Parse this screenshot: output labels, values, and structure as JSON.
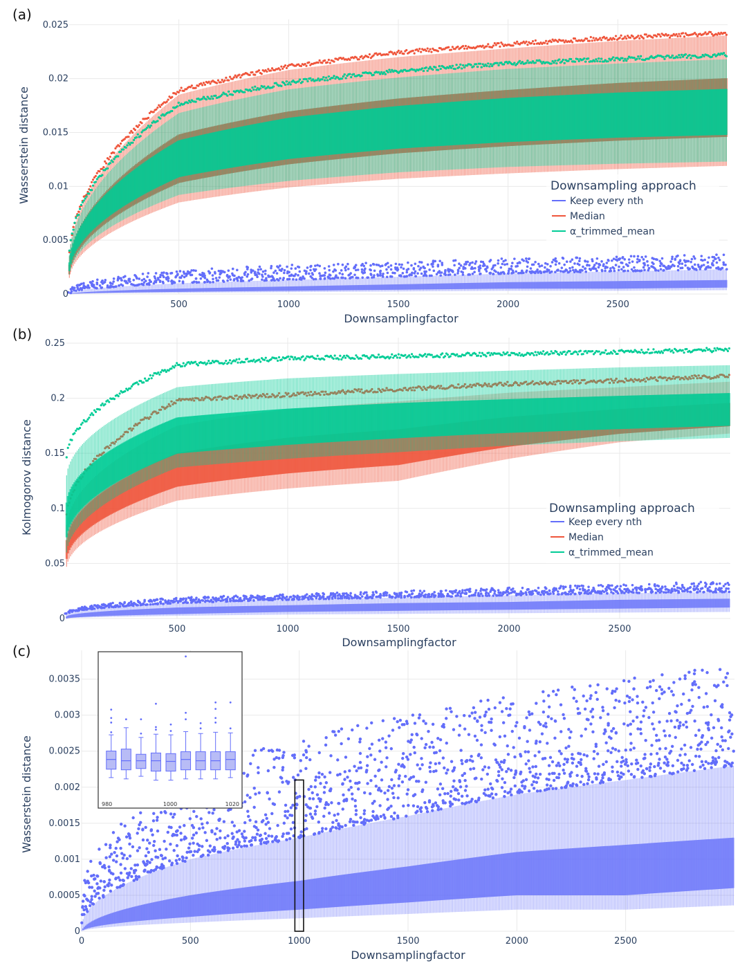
{
  "colors": {
    "keep_every_nth": "#636efa",
    "median": "#ef553b",
    "alpha_trimmed_mean": "#00cc96",
    "grid": "#e9e9e9"
  },
  "chart_data": [
    {
      "id": "a",
      "panel_label": "(a)",
      "type": "box",
      "xlabel": "Downsamplingfactor",
      "ylabel": "Wasserstein distance",
      "xlim": [
        0,
        3000
      ],
      "ylim": [
        0,
        0.0255
      ],
      "x_ticks": [
        500,
        1000,
        1500,
        2000,
        2500
      ],
      "x_tick_labels": [
        "500",
        "1000",
        "1500",
        "2000",
        "2500"
      ],
      "y_ticks": [
        0,
        0.005,
        0.01,
        0.015,
        0.02,
        0.025
      ],
      "y_tick_labels": [
        "0",
        "0.005",
        "0.01",
        "0.015",
        "0.02",
        "0.025"
      ],
      "legend": {
        "title": "Downsampling approach",
        "items": [
          "Keep every nth",
          "Median",
          "α_trimmed_mean"
        ],
        "position": "right"
      },
      "series": [
        {
          "name": "Keep every nth",
          "x": [
            1,
            500,
            1000,
            1500,
            2000,
            2500,
            3000
          ],
          "q1": [
            0.0,
            0.0002,
            0.0003,
            0.0004,
            0.0005,
            0.0005,
            0.0006
          ],
          "median": [
            0.0,
            0.0003,
            0.0005,
            0.0006,
            0.0007,
            0.0008,
            0.0009
          ],
          "q3": [
            0.0,
            0.0005,
            0.0007,
            0.0009,
            0.0011,
            0.0012,
            0.0013
          ],
          "upper": [
            0.0001,
            0.001,
            0.0013,
            0.0016,
            0.0019,
            0.0021,
            0.0023
          ],
          "outlier_max": [
            0.0005,
            0.0022,
            0.0027,
            0.003,
            0.0033,
            0.0035,
            0.0037
          ]
        },
        {
          "name": "Median",
          "x": [
            1,
            500,
            1000,
            1500,
            2000,
            2500,
            3000
          ],
          "lower": [
            0.0015,
            0.0085,
            0.0099,
            0.0107,
            0.0112,
            0.0116,
            0.0119
          ],
          "median": [
            0.0021,
            0.0118,
            0.0138,
            0.015,
            0.0158,
            0.0164,
            0.0168
          ],
          "upper": [
            0.0035,
            0.0185,
            0.0208,
            0.022,
            0.0228,
            0.0235,
            0.024
          ],
          "outlier_max": [
            0.004,
            0.0191,
            0.0213,
            0.0226,
            0.0234,
            0.024,
            0.0244
          ]
        },
        {
          "name": "α_trimmed_mean",
          "x": [
            1,
            500,
            1000,
            1500,
            2000,
            2500,
            3000
          ],
          "lower": [
            0.0018,
            0.0092,
            0.0105,
            0.0113,
            0.0118,
            0.0121,
            0.0123
          ],
          "median": [
            0.0024,
            0.0122,
            0.0142,
            0.0153,
            0.016,
            0.0165,
            0.0168
          ],
          "upper": [
            0.0036,
            0.0168,
            0.019,
            0.0201,
            0.0209,
            0.0214,
            0.0218
          ],
          "outlier_max": [
            0.0042,
            0.0178,
            0.0198,
            0.0209,
            0.0216,
            0.022,
            0.0224
          ]
        }
      ]
    },
    {
      "id": "b",
      "panel_label": "(b)",
      "type": "box",
      "xlabel": "Downsamplingfactor",
      "ylabel": "Kolmogorov distance",
      "xlim": [
        0,
        3000
      ],
      "ylim": [
        0,
        0.255
      ],
      "x_ticks": [
        500,
        1000,
        1500,
        2000,
        2500
      ],
      "x_tick_labels": [
        "500",
        "1000",
        "1500",
        "2000",
        "2500"
      ],
      "y_ticks": [
        0,
        0.05,
        0.1,
        0.15,
        0.2,
        0.25
      ],
      "y_tick_labels": [
        "0",
        "0.05",
        "0.1",
        "0.15",
        "0.2",
        "0.25"
      ],
      "legend": {
        "title": "Downsampling approach",
        "items": [
          "Keep every nth",
          "Median",
          "α_trimmed_mean"
        ],
        "position": "right"
      },
      "series": [
        {
          "name": "Keep every nth",
          "x": [
            1,
            500,
            1000,
            1500,
            2000,
            2500,
            3000
          ],
          "q1": [
            0.0,
            0.004,
            0.006,
            0.007,
            0.008,
            0.009,
            0.01
          ],
          "median": [
            0.001,
            0.007,
            0.009,
            0.011,
            0.012,
            0.013,
            0.014
          ],
          "q3": [
            0.002,
            0.01,
            0.012,
            0.014,
            0.015,
            0.017,
            0.018
          ],
          "upper": [
            0.004,
            0.014,
            0.017,
            0.019,
            0.021,
            0.023,
            0.024
          ],
          "outlier_max": [
            0.006,
            0.019,
            0.022,
            0.025,
            0.028,
            0.031,
            0.034
          ]
        },
        {
          "name": "Median",
          "x": [
            1,
            500,
            1000,
            1500,
            2000,
            2500,
            3000
          ],
          "lower": [
            0.047,
            0.107,
            0.118,
            0.125,
            0.145,
            0.16,
            0.168
          ],
          "median": [
            0.06,
            0.13,
            0.143,
            0.151,
            0.165,
            0.174,
            0.18
          ],
          "upper": [
            0.085,
            0.175,
            0.19,
            0.197,
            0.205,
            0.21,
            0.215
          ],
          "outlier_max": [
            0.095,
            0.2,
            0.205,
            0.21,
            0.215,
            0.218,
            0.222
          ]
        },
        {
          "name": "α_trimmed_mean",
          "x": [
            1,
            500,
            1000,
            1500,
            2000,
            2500,
            3000
          ],
          "lower": [
            0.06,
            0.137,
            0.145,
            0.151,
            0.157,
            0.161,
            0.164
          ],
          "median": [
            0.085,
            0.16,
            0.168,
            0.174,
            0.178,
            0.181,
            0.184
          ],
          "upper": [
            0.13,
            0.21,
            0.218,
            0.222,
            0.225,
            0.228,
            0.23
          ],
          "outlier_max": [
            0.15,
            0.232,
            0.238,
            0.24,
            0.242,
            0.244,
            0.246
          ]
        }
      ]
    },
    {
      "id": "c",
      "panel_label": "(c)",
      "type": "box",
      "xlabel": "Downsamplingfactor",
      "ylabel": "Wasserstein distance",
      "xlim": [
        0,
        3000
      ],
      "ylim": [
        0,
        0.0039
      ],
      "x_ticks": [
        0,
        500,
        1000,
        1500,
        2000,
        2500
      ],
      "x_tick_labels": [
        "0",
        "500",
        "1000",
        "1500",
        "2000",
        "2500"
      ],
      "y_ticks": [
        0,
        0.0005,
        0.001,
        0.0015,
        0.002,
        0.0025,
        0.003,
        0.0035
      ],
      "y_tick_labels": [
        "0",
        "0.0005",
        "0.001",
        "0.0015",
        "0.002",
        "0.0025",
        "0.003",
        "0.0035"
      ],
      "series": [
        {
          "name": "Keep every nth",
          "x": [
            1,
            500,
            1000,
            1500,
            2000,
            2500,
            3000
          ],
          "q1": [
            0.0,
            0.0002,
            0.0003,
            0.0004,
            0.0005,
            0.0005,
            0.0006
          ],
          "median": [
            0.0,
            0.0003,
            0.0005,
            0.0006,
            0.0007,
            0.0008,
            0.0009
          ],
          "q3": [
            0.0,
            0.0005,
            0.0007,
            0.0009,
            0.0011,
            0.0012,
            0.0013
          ],
          "upper": [
            0.0001,
            0.001,
            0.0013,
            0.0016,
            0.0019,
            0.0021,
            0.0023
          ],
          "outlier_max": [
            0.0005,
            0.0022,
            0.0027,
            0.003,
            0.0033,
            0.0035,
            0.0037
          ]
        }
      ],
      "highlight_box": {
        "x_range": [
          980,
          1020
        ],
        "y_range": [
          0,
          0.0021
        ]
      },
      "inset": {
        "type": "box",
        "x_tick_labels": [
          "980",
          "1000",
          "1020"
        ],
        "boxes": [
          {
            "q1": 0.00213,
            "median": 0.00228,
            "q3": 0.00241,
            "lower": 0.002,
            "upper": 0.00266,
            "outliers": [
              0.0027,
              0.00285,
              0.00292,
              0.00305
            ]
          },
          {
            "q1": 0.00212,
            "median": 0.00226,
            "q3": 0.00244,
            "lower": 0.00198,
            "upper": 0.00277,
            "outliers": [
              0.0029
            ]
          },
          {
            "q1": 0.00214,
            "median": 0.00226,
            "q3": 0.00236,
            "lower": 0.00202,
            "upper": 0.00262,
            "outliers": [
              0.00268,
              0.0029
            ]
          },
          {
            "q1": 0.0021,
            "median": 0.00226,
            "q3": 0.00238,
            "lower": 0.00196,
            "upper": 0.00267,
            "outliers": [
              0.00274,
              0.00278,
              0.00314
            ]
          },
          {
            "q1": 0.0021,
            "median": 0.00225,
            "q3": 0.00237,
            "lower": 0.00196,
            "upper": 0.00266,
            "outliers": [
              0.00272,
              0.00282
            ]
          },
          {
            "q1": 0.00212,
            "median": 0.00228,
            "q3": 0.0024,
            "lower": 0.00198,
            "upper": 0.00271,
            "outliers": [
              0.0029,
              0.003,
              0.00387
            ]
          },
          {
            "q1": 0.00212,
            "median": 0.00226,
            "q3": 0.0024,
            "lower": 0.00198,
            "upper": 0.00268,
            "outliers": [
              0.00276,
              0.00284
            ]
          },
          {
            "q1": 0.00212,
            "median": 0.00226,
            "q3": 0.0024,
            "lower": 0.00198,
            "upper": 0.0027,
            "outliers": [
              0.00285,
              0.00292,
              0.00306,
              0.00316
            ]
          },
          {
            "q1": 0.00212,
            "median": 0.00228,
            "q3": 0.0024,
            "lower": 0.002,
            "upper": 0.00269,
            "outliers": [
              0.00276,
              0.00316
            ]
          }
        ]
      }
    }
  ]
}
